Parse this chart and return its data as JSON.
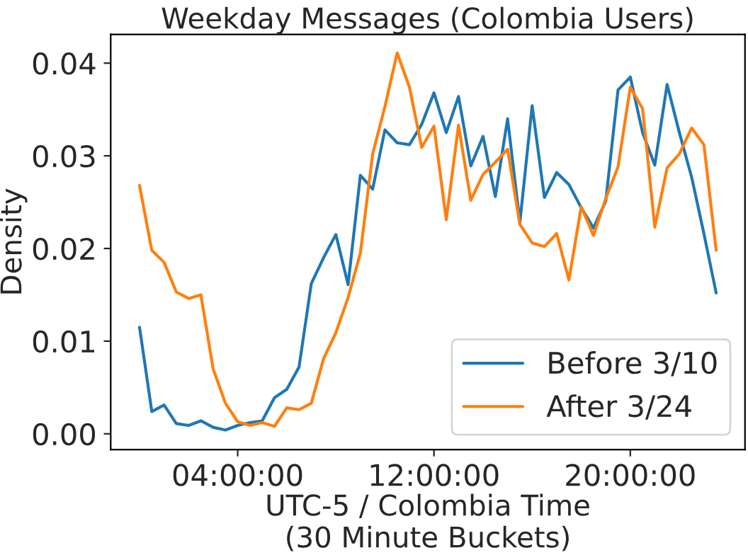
{
  "chart_data": {
    "type": "line",
    "title": "Weekday Messages (Colombia Users)",
    "xlabel": "UTC-5 / Colombia Time\n(30 Minute Buckets)",
    "ylabel": "Density",
    "x": [
      0,
      0.5,
      1,
      1.5,
      2,
      2.5,
      3,
      3.5,
      4,
      4.5,
      5,
      5.5,
      6,
      6.5,
      7,
      7.5,
      8,
      8.5,
      9,
      9.5,
      10,
      10.5,
      11,
      11.5,
      12,
      12.5,
      13,
      13.5,
      14,
      14.5,
      15,
      15.5,
      16,
      16.5,
      17,
      17.5,
      18,
      18.5,
      19,
      19.5,
      20,
      20.5,
      21,
      21.5,
      22,
      22.5,
      23,
      23.5
    ],
    "series": [
      {
        "name": "Before 3/10",
        "color": "#1f77b4",
        "values": [
          0.0115,
          0.0024,
          0.0031,
          0.0011,
          0.0009,
          0.0014,
          0.0007,
          0.0004,
          0.0009,
          0.0012,
          0.0014,
          0.0039,
          0.0048,
          0.0072,
          0.0162,
          0.019,
          0.0215,
          0.0161,
          0.0279,
          0.0264,
          0.0328,
          0.0314,
          0.0312,
          0.0334,
          0.0368,
          0.0325,
          0.0364,
          0.0289,
          0.0321,
          0.0256,
          0.034,
          0.0228,
          0.0354,
          0.0255,
          0.0282,
          0.0269,
          0.0244,
          0.0222,
          0.0251,
          0.0371,
          0.0385,
          0.0325,
          0.029,
          0.0377,
          0.0325,
          0.0277,
          0.0216,
          0.0152
        ]
      },
      {
        "name": "After 3/24",
        "color": "#ff7f0e",
        "values": [
          0.0268,
          0.0198,
          0.0185,
          0.0153,
          0.0146,
          0.015,
          0.007,
          0.0033,
          0.0013,
          0.0009,
          0.0012,
          0.0008,
          0.0028,
          0.0026,
          0.0033,
          0.0081,
          0.0109,
          0.0147,
          0.0195,
          0.0302,
          0.0353,
          0.0411,
          0.0374,
          0.0309,
          0.0332,
          0.0231,
          0.0333,
          0.0252,
          0.028,
          0.0293,
          0.0307,
          0.0226,
          0.0206,
          0.0202,
          0.0216,
          0.0166,
          0.0245,
          0.0214,
          0.0254,
          0.0288,
          0.0374,
          0.0351,
          0.0223,
          0.0287,
          0.0302,
          0.033,
          0.0312,
          0.0198
        ]
      }
    ],
    "xlim": [
      -1.175,
      24.675
    ],
    "xticks": [
      {
        "value": 4,
        "label": "04:00:00"
      },
      {
        "value": 12,
        "label": "12:00:00"
      },
      {
        "value": 20,
        "label": "20:00:00"
      }
    ],
    "ylim": [
      -0.0017,
      0.0431
    ],
    "yticks": [
      {
        "value": 0,
        "label": "0.00"
      },
      {
        "value": 0.01,
        "label": "0.01"
      },
      {
        "value": 0.02,
        "label": "0.02"
      },
      {
        "value": 0.03,
        "label": "0.03"
      },
      {
        "value": 0.04,
        "label": "0.04"
      }
    ],
    "legend": "lower right",
    "grid": false,
    "line_style": "solid"
  }
}
